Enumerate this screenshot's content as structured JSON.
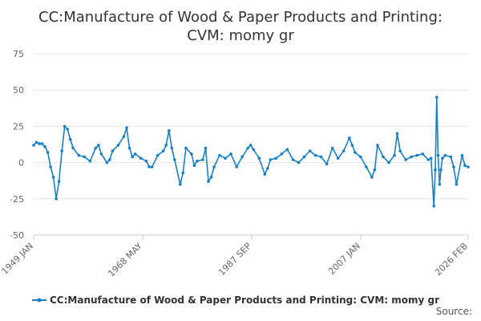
{
  "chart_data": {
    "type": "line",
    "title": "CC:Manufacture of Wood & Paper Products and Printing: CVM: momy gr",
    "title_lines": [
      "CC:Manufacture of Wood & Paper Products and Printing:",
      "CVM: momy gr"
    ],
    "xlabel": "",
    "ylabel": "",
    "ylim": [
      -50,
      75
    ],
    "yticks": [
      75,
      50,
      25,
      0,
      -25,
      -50
    ],
    "ytick_labels": [
      "75",
      "50",
      "25",
      "0",
      "-25",
      "-50"
    ],
    "xticks": [
      {
        "label": "1949 JAN",
        "t": 1949.0
      },
      {
        "label": "1968 MAY",
        "t": 1968.33
      },
      {
        "label": "1987 SEP",
        "t": 1987.67
      },
      {
        "label": "2007 JAN",
        "t": 2007.0
      },
      {
        "label": "2026 FEB",
        "t": 2026.08
      }
    ],
    "xlim": [
      1949.0,
      2026.08
    ],
    "grid": true,
    "legend_position": "bottom",
    "series": [
      {
        "name": "CC:Manufacture of Wood & Paper Products and Printing: CVM: momy gr",
        "color": "#1a7fc0",
        "x": [
          1949.0,
          1949.5,
          1950.0,
          1950.5,
          1951.0,
          1951.5,
          1952.0,
          1952.5,
          1953.0,
          1953.5,
          1954.0,
          1954.5,
          1955.0,
          1955.5,
          1956.0,
          1957.0,
          1958.0,
          1959.0,
          1960.0,
          1960.5,
          1961.0,
          1962.0,
          1962.5,
          1963.0,
          1964.0,
          1965.0,
          1965.5,
          1966.0,
          1966.5,
          1967.0,
          1968.0,
          1969.0,
          1969.5,
          1970.0,
          1971.0,
          1972.0,
          1972.5,
          1973.0,
          1973.5,
          1974.0,
          1975.0,
          1975.5,
          1976.0,
          1977.0,
          1977.5,
          1978.0,
          1979.0,
          1979.5,
          1980.0,
          1980.5,
          1981.0,
          1982.0,
          1983.0,
          1984.0,
          1985.0,
          1986.0,
          1987.0,
          1987.5,
          1988.0,
          1989.0,
          1990.0,
          1990.5,
          1991.0,
          1992.0,
          1993.0,
          1994.0,
          1995.0,
          1996.0,
          1997.0,
          1998.0,
          1999.0,
          2000.0,
          2001.0,
          2002.0,
          2003.0,
          2004.0,
          2005.0,
          2005.5,
          2006.0,
          2007.0,
          2008.0,
          2009.0,
          2009.5,
          2010.0,
          2011.0,
          2012.0,
          2013.0,
          2013.5,
          2014.0,
          2015.0,
          2016.0,
          2017.0,
          2018.0,
          2019.0,
          2019.5,
          2020.0,
          2020.25,
          2020.5,
          2020.75,
          2021.0,
          2021.25,
          2021.5,
          2022.0,
          2023.0,
          2023.5,
          2024.0,
          2025.0,
          2025.5,
          2026.08
        ],
        "values": [
          12,
          14,
          13,
          13,
          11,
          7,
          -3,
          -10,
          -25,
          -13,
          8,
          25,
          23,
          16,
          10,
          5,
          4,
          1,
          10,
          12,
          6,
          0,
          2,
          8,
          12,
          18,
          24,
          10,
          4,
          6,
          3,
          1,
          -3,
          -3,
          5,
          8,
          12,
          22,
          10,
          2,
          -15,
          -7,
          10,
          6,
          -2,
          1,
          2,
          10,
          -13,
          -10,
          -3,
          5,
          3,
          6,
          -3,
          4,
          10,
          12,
          9,
          3,
          -8,
          -4,
          2,
          3,
          6,
          9,
          2,
          0,
          4,
          8,
          5,
          4,
          -1,
          10,
          3,
          8,
          17,
          12,
          7,
          4,
          -3,
          -10,
          -5,
          12,
          4,
          0,
          5,
          20,
          8,
          2,
          4,
          5,
          6,
          2,
          3,
          -30,
          -5,
          45,
          5,
          -15,
          -5,
          3,
          5,
          4,
          -3,
          -15,
          5,
          -2,
          -3
        ]
      }
    ]
  },
  "source_label": "Source:"
}
